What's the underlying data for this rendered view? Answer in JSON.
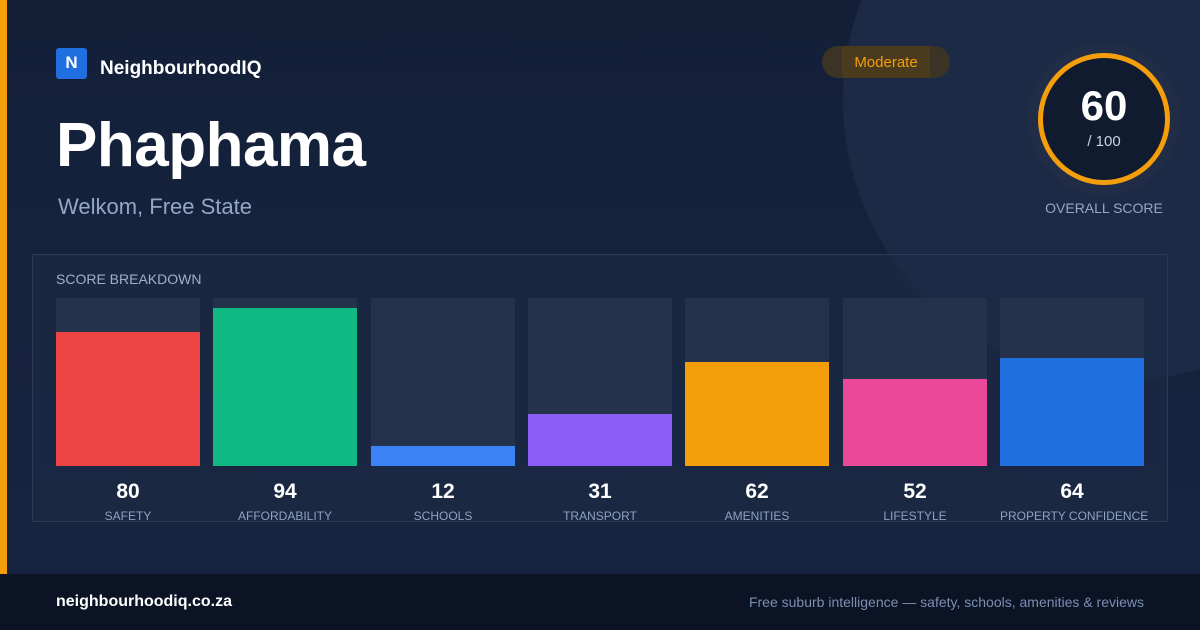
{
  "brand": {
    "logo_letter": "N",
    "name": "NeighbourhoodIQ"
  },
  "suburb": {
    "name": "Phaphama",
    "location": "Welkom, Free State"
  },
  "rating_badge": "Moderate",
  "overall": {
    "score": "60",
    "max": "/ 100",
    "label": "OVERALL SCORE"
  },
  "breakdown": {
    "title": "SCORE BREAKDOWN",
    "items": [
      {
        "label": "SAFETY",
        "value": "80",
        "fill_fraction": 0.8,
        "color": "#ef4444"
      },
      {
        "label": "AFFORDABILITY",
        "value": "94",
        "fill_fraction": 0.94,
        "color": "#10b981"
      },
      {
        "label": "SCHOOLS",
        "value": "12",
        "fill_fraction": 0.12,
        "color": "#3b82f6"
      },
      {
        "label": "TRANSPORT",
        "value": "31",
        "fill_fraction": 0.31,
        "color": "#8b5cf6"
      },
      {
        "label": "AMENITIES",
        "value": "62",
        "fill_fraction": 0.62,
        "color": "#f59e0b"
      },
      {
        "label": "LIFESTYLE",
        "value": "52",
        "fill_fraction": 0.52,
        "color": "#ec4899"
      },
      {
        "label": "PROPERTY CONFIDENCE",
        "value": "64",
        "fill_fraction": 0.64,
        "color": "#1f6fde"
      }
    ]
  },
  "footer": {
    "domain": "neighbourhoodiq.co.za",
    "tagline": "Free suburb intelligence — safety, schools, amenities & reviews"
  },
  "colors": {
    "accent": "#f59e0b",
    "brand": "#1f6fe0",
    "background": "#132038"
  }
}
